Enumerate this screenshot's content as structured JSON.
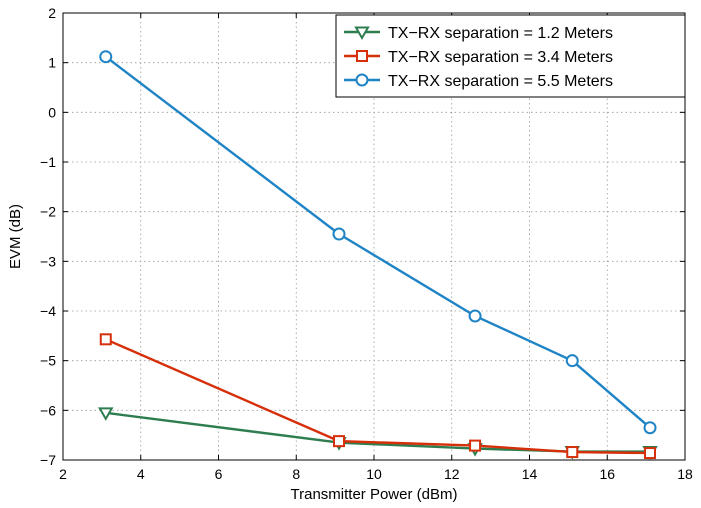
{
  "chart_data": {
    "type": "line",
    "title": "",
    "xlabel": "Transmitter Power (dBm)",
    "ylabel": "EVM (dB)",
    "xlim": [
      2,
      18
    ],
    "ylim": [
      -7,
      2
    ],
    "xticks": [
      2,
      4,
      6,
      8,
      10,
      12,
      14,
      16,
      18
    ],
    "yticks": [
      -7,
      -6,
      -5,
      -4,
      -3,
      -2,
      -1,
      0,
      1,
      2
    ],
    "grid": true,
    "legend_position": "top-right",
    "series": [
      {
        "name": "TX−RX separation = 1.2 Meters",
        "color": "#2e7d4f",
        "marker": "triangle-down",
        "x": [
          3.1,
          9.1,
          12.6,
          15.1,
          17.1
        ],
        "y": [
          -6.05,
          -6.65,
          -6.77,
          -6.83,
          -6.83
        ]
      },
      {
        "name": "TX−RX separation = 3.4 Meters",
        "color": "#d62f0a",
        "marker": "square",
        "x": [
          3.1,
          9.1,
          12.6,
          15.1,
          17.1
        ],
        "y": [
          -4.57,
          -6.62,
          -6.71,
          -6.84,
          -6.86
        ]
      },
      {
        "name": "TX−RX separation = 5.5 Meters",
        "color": "#1f84c6",
        "marker": "circle",
        "x": [
          3.1,
          9.1,
          12.6,
          15.1,
          17.1
        ],
        "y": [
          1.12,
          -2.45,
          -4.1,
          -5.0,
          -6.35
        ]
      }
    ]
  }
}
